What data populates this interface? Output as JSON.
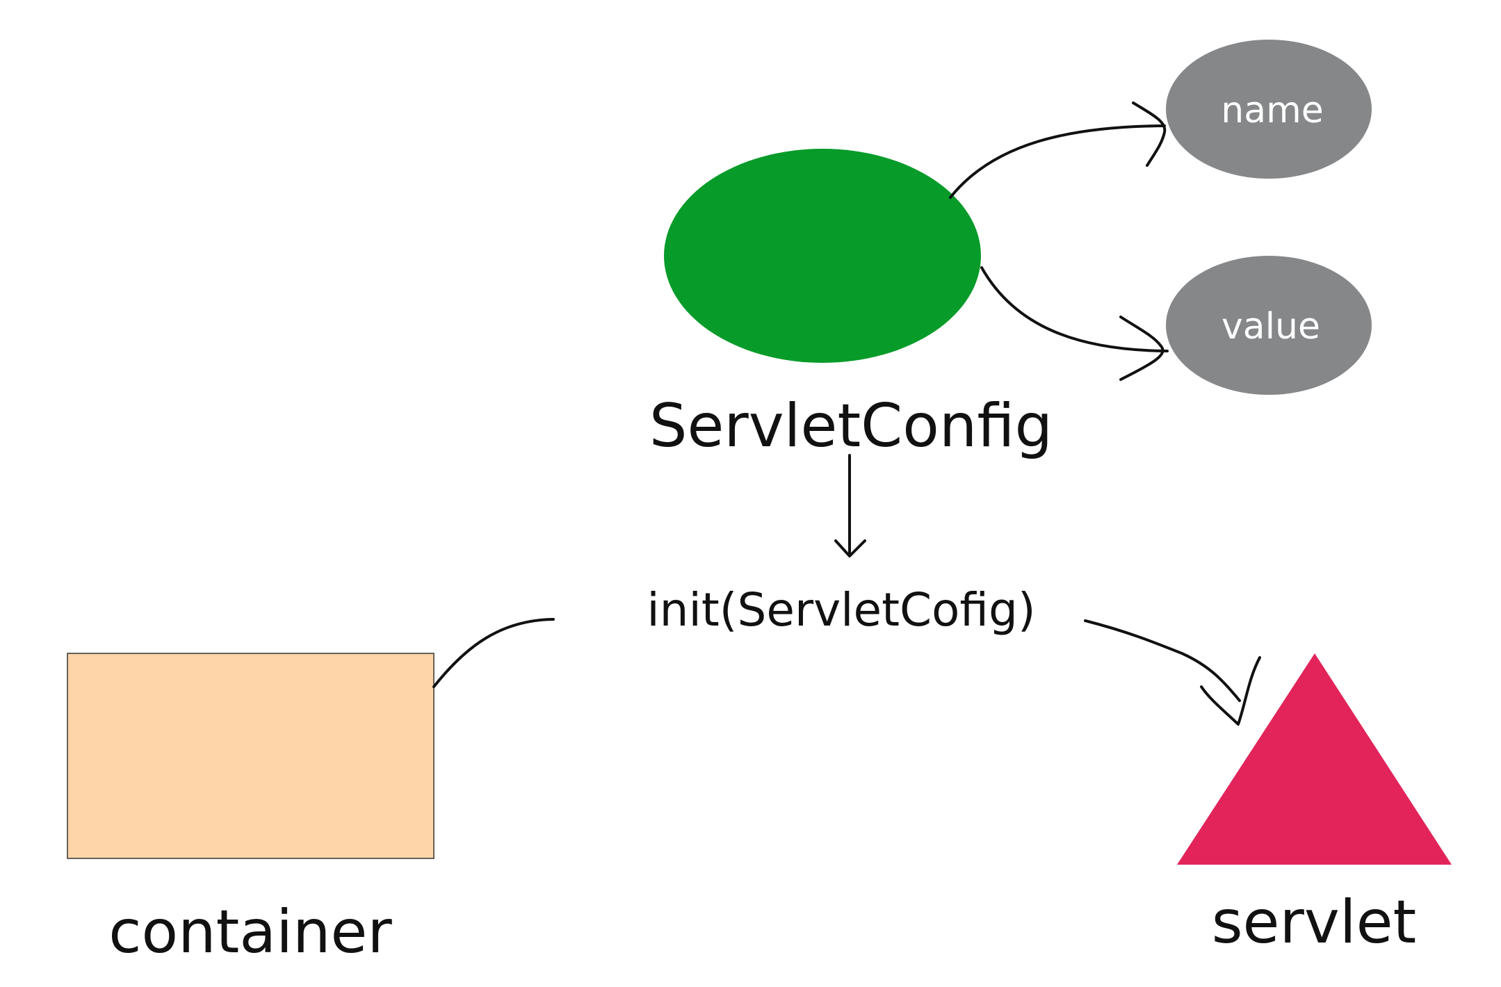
{
  "nodes": {
    "servlet_config": {
      "label": "ServletConfig",
      "color": "#079b29"
    },
    "name": {
      "label": "name",
      "color": "#858789"
    },
    "value": {
      "label": "value",
      "color": "#858789"
    },
    "init_call": {
      "label": "init(ServletCofig)"
    },
    "container": {
      "label": "container",
      "color": "#fdd5a8"
    },
    "servlet": {
      "label": "servlet",
      "color": "#e2245b"
    }
  },
  "edges": [
    {
      "from": "ServletConfig",
      "to": "name",
      "arrow": true
    },
    {
      "from": "ServletConfig",
      "to": "value",
      "arrow": true
    },
    {
      "from": "ServletConfig",
      "to": "init(ServletCofig)",
      "arrow": true
    },
    {
      "from": "container",
      "to": "init(ServletCofig)",
      "arrow": false
    },
    {
      "from": "init(ServletCofig)",
      "to": "servlet",
      "arrow": true
    }
  ]
}
